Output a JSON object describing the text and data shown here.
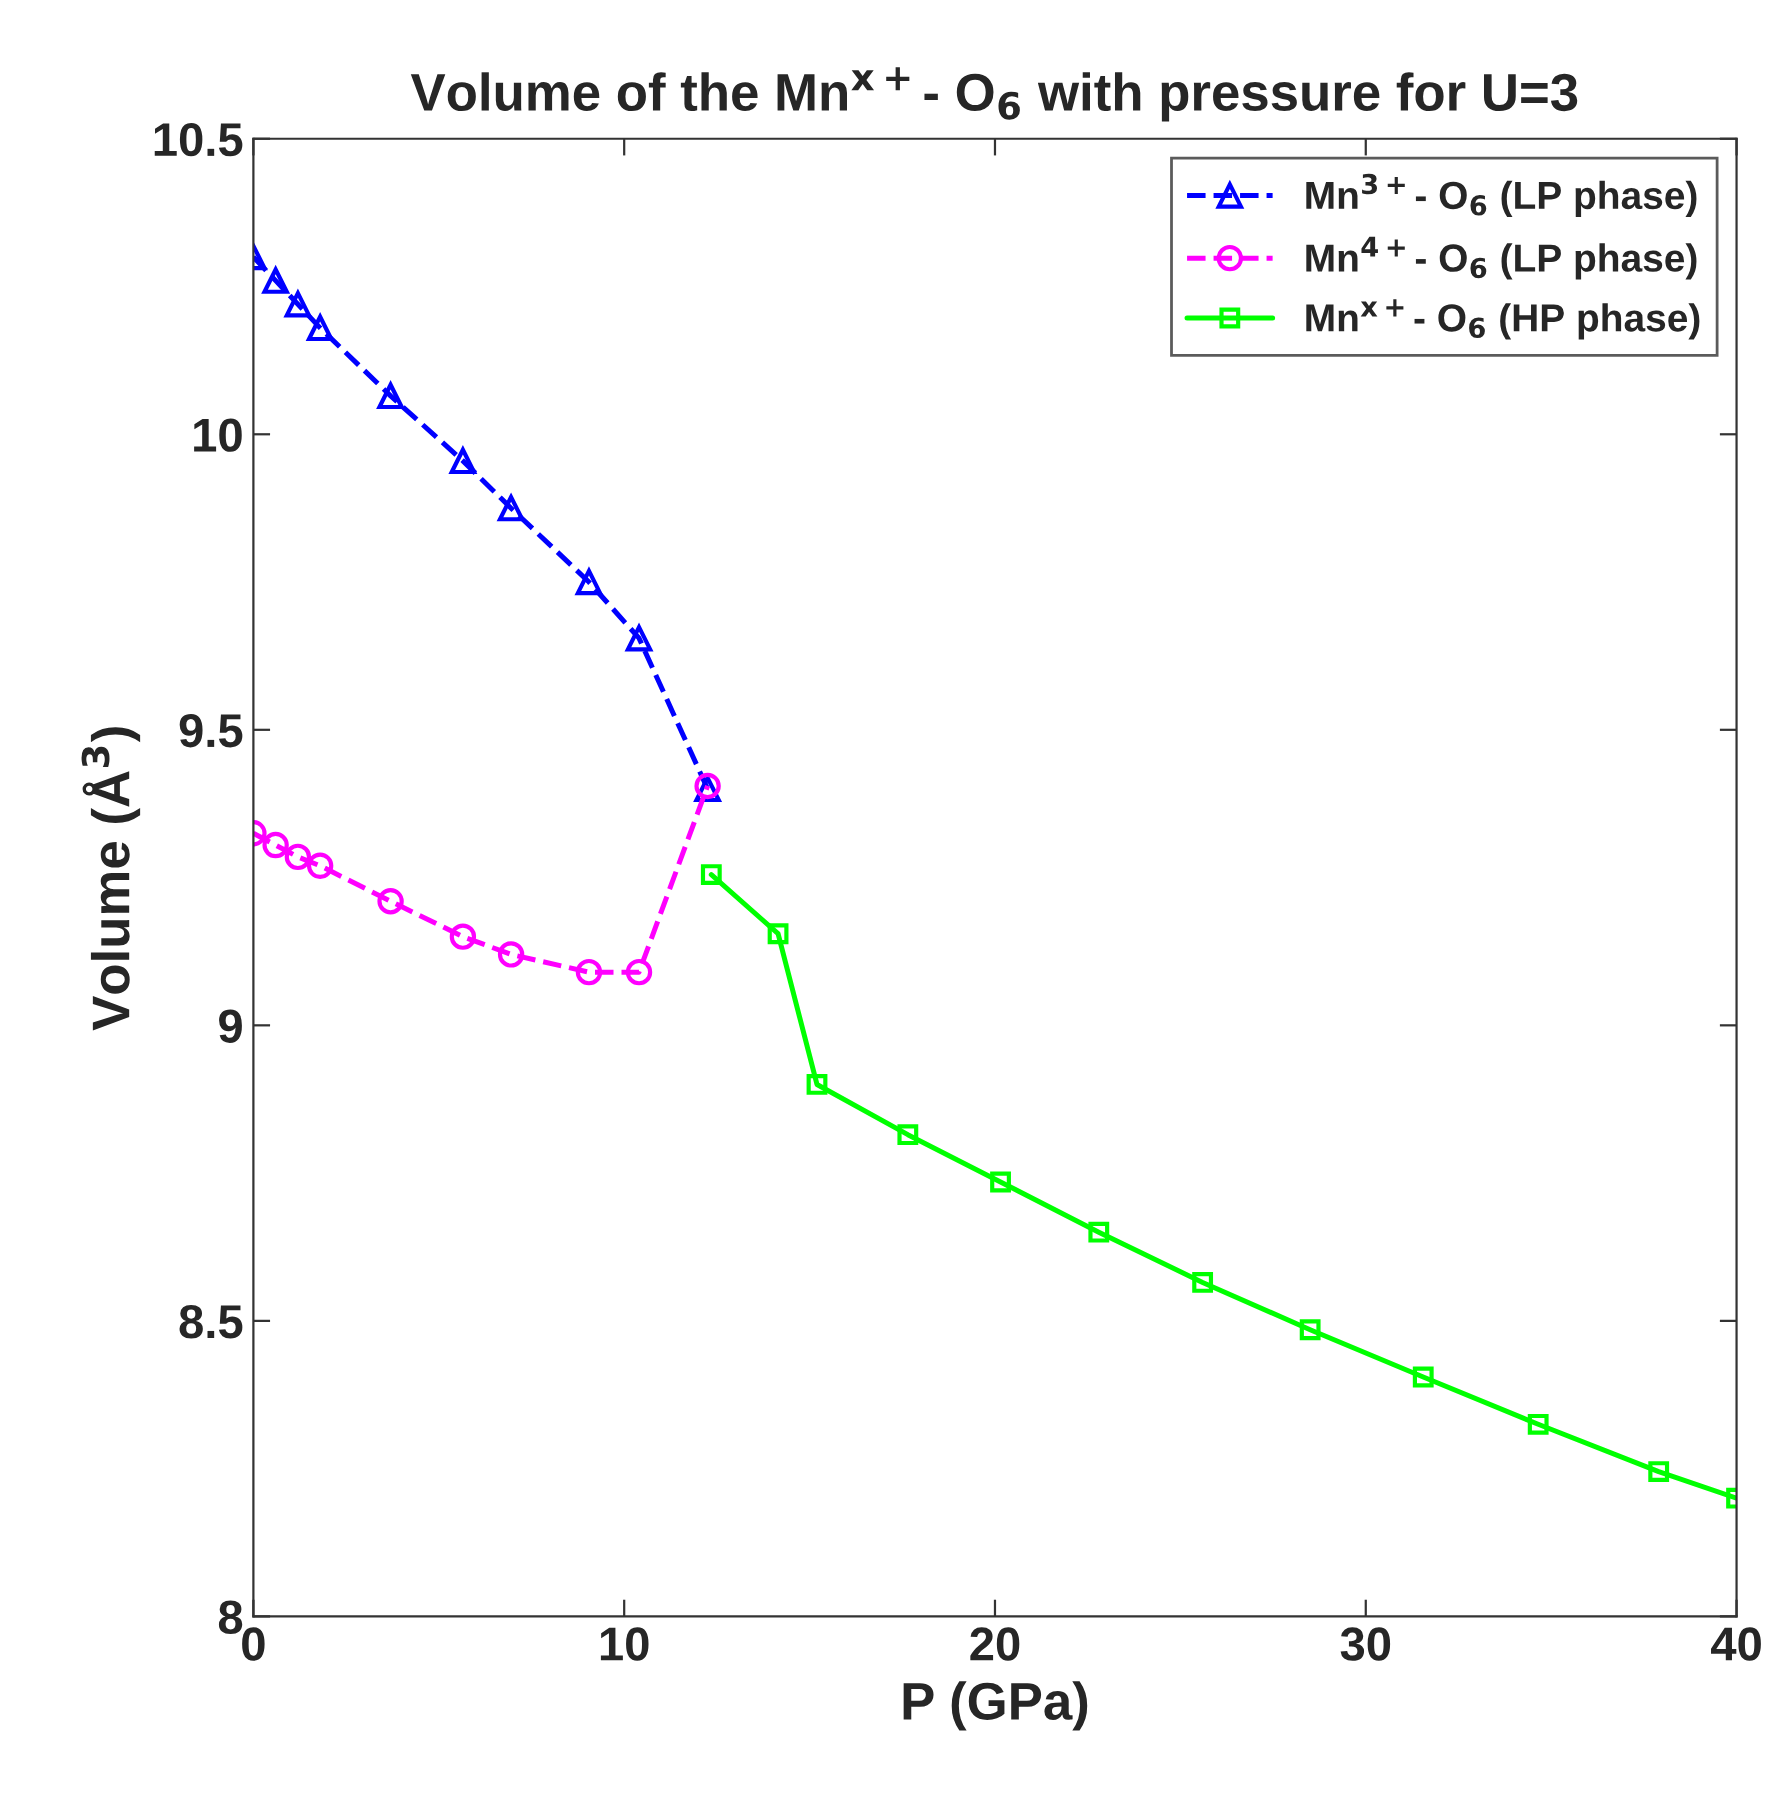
{
  "chart_data": {
    "type": "line",
    "title": "Volume of the Mn$^{x+}$- O$_{6}$ with pressure for U=3",
    "xlabel": "P (GPa)",
    "ylabel": "Volume (Å$^{3}$)",
    "xlim": [
      0,
      40
    ],
    "xticks": [
      0,
      10,
      20,
      30,
      40
    ],
    "ylim": [
      8,
      10.5
    ],
    "yticks": [
      8,
      8.5,
      9,
      9.5,
      10,
      10.5
    ],
    "grid": false,
    "legend": "top right",
    "series": [
      {
        "name": "Mn$^{3+}$- O$_{6}$ (LP phase)",
        "color": "#0000ff",
        "marker": "triangle",
        "line_style": "dashed",
        "x": [
          0,
          0.6,
          1.2,
          1.8,
          3.7,
          5.65,
          6.95,
          9.05,
          10.4,
          12.25
        ],
        "values": [
          10.3,
          10.26,
          10.22,
          10.18,
          10.065,
          9.955,
          9.875,
          9.75,
          9.655,
          9.4
        ]
      },
      {
        "name": "Mn$^{4+}$- O$_{6}$ (LP phase)",
        "color": "#ff00ff",
        "marker": "circle",
        "line_style": "dashed",
        "x": [
          0,
          0.6,
          1.2,
          1.8,
          3.7,
          5.65,
          6.95,
          9.05,
          10.4,
          12.25
        ],
        "values": [
          9.325,
          9.305,
          9.285,
          9.27,
          9.21,
          9.15,
          9.12,
          9.09,
          9.09,
          9.405
        ]
      },
      {
        "name": "Mn$^{x+}$- O$_{6}$ (HP phase)",
        "color": "#00ff00",
        "marker": "square",
        "line_style": "solid",
        "x": [
          12.35,
          14.15,
          15.2,
          17.65,
          20.15,
          22.8,
          25.6,
          28.5,
          31.55,
          34.65,
          37.9,
          40
        ],
        "values": [
          9.255,
          9.155,
          8.9,
          8.815,
          8.735,
          8.65,
          8.565,
          8.485,
          8.405,
          8.325,
          8.245,
          8.2
        ]
      }
    ]
  }
}
